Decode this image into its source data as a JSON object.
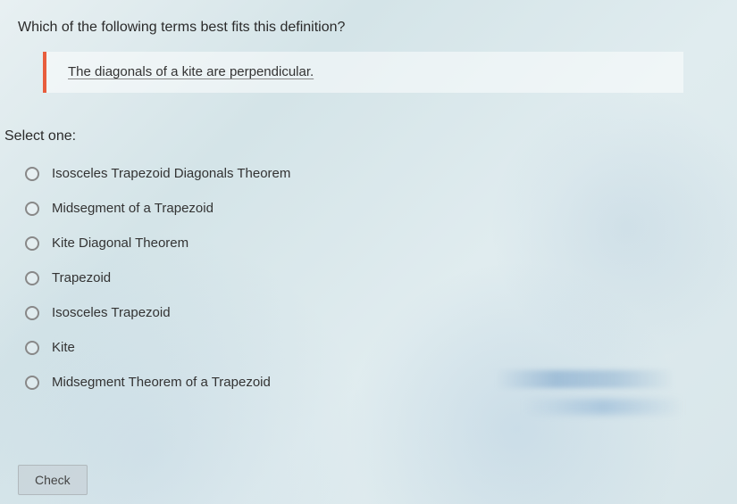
{
  "question": {
    "prompt": "Which of the following terms best fits this definition?",
    "definition": "The diagonals of a kite are perpendicular.",
    "select_label": "Select one:"
  },
  "options": [
    {
      "label": "Isosceles Trapezoid Diagonals Theorem"
    },
    {
      "label": "Midsegment of a Trapezoid"
    },
    {
      "label": "Kite Diagonal Theorem"
    },
    {
      "label": "Trapezoid"
    },
    {
      "label": "Isosceles Trapezoid"
    },
    {
      "label": "Kite"
    },
    {
      "label": "Midsegment Theorem of a Trapezoid"
    }
  ],
  "buttons": {
    "check": "Check"
  },
  "style": {
    "accent_border": "#e85d3d",
    "text_color": "#2a2a2a",
    "option_text_color": "#333",
    "radio_border": "#888",
    "background_tint": "#e0ecef",
    "question_fontsize": 16,
    "option_fontsize": 15
  }
}
